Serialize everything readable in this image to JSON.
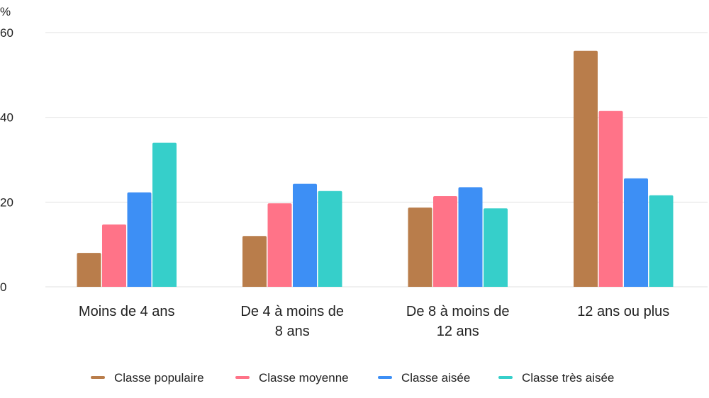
{
  "chart_data": {
    "type": "bar",
    "y_unit": "%",
    "categories": [
      [
        "Moins de 4 ans"
      ],
      [
        "De 4 à moins de",
        "8 ans"
      ],
      [
        "De 8 à moins de",
        "12 ans"
      ],
      [
        "12 ans ou plus"
      ]
    ],
    "series": [
      {
        "name": "Classe populaire",
        "color": "#b97d4b",
        "values": [
          8,
          12,
          18.7,
          55.7
        ]
      },
      {
        "name": "Classe moyenne",
        "color": "#ff7388",
        "values": [
          14.7,
          19.7,
          21.4,
          41.5
        ]
      },
      {
        "name": "Classe aisée",
        "color": "#3d8ff5",
        "values": [
          22.3,
          24.3,
          23.5,
          25.6
        ]
      },
      {
        "name": "Classe très aisée",
        "color": "#36cfca",
        "values": [
          34,
          22.6,
          18.5,
          21.6
        ]
      }
    ],
    "yticks": [
      0,
      20,
      40,
      60
    ],
    "ylim": [
      0,
      60
    ],
    "grid": true,
    "legend_position": "bottom"
  }
}
